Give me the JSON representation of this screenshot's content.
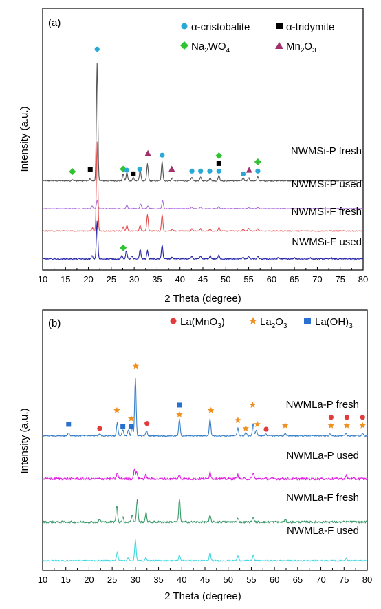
{
  "chart_data": [
    {
      "type": "line",
      "panel_label": "(a)",
      "xlabel": "2 Theta (degree)",
      "ylabel": "Intensity (a.u.)",
      "xlim": [
        10,
        80
      ],
      "xticks": [
        10,
        15,
        20,
        25,
        30,
        35,
        40,
        45,
        50,
        55,
        60,
        65,
        70,
        75,
        80
      ],
      "legend": [
        {
          "label": "α-cristobalite",
          "marker": "circle",
          "color": "#29a9d6"
        },
        {
          "label": "α-tridymite",
          "marker": "square",
          "color": "#000000"
        },
        {
          "label": "Na2WO4",
          "marker": "diamond",
          "color": "#2fc42f"
        },
        {
          "label": "Mn2O3",
          "marker": "triangle",
          "color": "#a0306e"
        }
      ],
      "series": [
        {
          "name": "NWMSi-P fresh",
          "color": "#555555",
          "offset": 3.0,
          "noise": 0.04,
          "peaks": [
            [
              16.5,
              0.05
            ],
            [
              20.4,
              0.08
            ],
            [
              21.9,
              4.2
            ],
            [
              27.6,
              0.25
            ],
            [
              28.4,
              0.3
            ],
            [
              29.8,
              0.12
            ],
            [
              31.3,
              0.4
            ],
            [
              32.9,
              0.6
            ],
            [
              36.1,
              0.7
            ],
            [
              38.3,
              0.1
            ],
            [
              42.6,
              0.12
            ],
            [
              44.5,
              0.12
            ],
            [
              46.6,
              0.12
            ],
            [
              48.5,
              0.2
            ],
            [
              53.8,
              0.1
            ],
            [
              55.0,
              0.12
            ],
            [
              57.0,
              0.14
            ]
          ],
          "markers": [
            {
              "type": "circle",
              "x": 21.9,
              "y": 4.72,
              "label": ""
            },
            {
              "type": "diamond",
              "x": 16.5,
              "y": 0.33
            },
            {
              "type": "square",
              "x": 20.4,
              "y": 0.42
            },
            {
              "type": "diamond",
              "x": 27.6,
              "y": 0.42
            },
            {
              "type": "circle",
              "x": 28.4,
              "y": 0.38
            },
            {
              "type": "square",
              "x": 29.8,
              "y": 0.25
            },
            {
              "type": "circle",
              "x": 31.2,
              "y": 0.42
            },
            {
              "type": "triangle",
              "x": 33.0,
              "y": 0.98
            },
            {
              "type": "circle",
              "x": 36.1,
              "y": 0.92
            },
            {
              "type": "triangle",
              "x": 38.2,
              "y": 0.42
            },
            {
              "type": "circle",
              "x": 42.6,
              "y": 0.35
            },
            {
              "type": "circle",
              "x": 44.5,
              "y": 0.35
            },
            {
              "type": "circle",
              "x": 46.5,
              "y": 0.35
            },
            {
              "type": "circle",
              "x": 48.5,
              "y": 0.35
            },
            {
              "type": "square",
              "x": 48.5,
              "y": 0.62
            },
            {
              "type": "diamond",
              "x": 48.5,
              "y": 0.9
            },
            {
              "type": "circle",
              "x": 53.8,
              "y": 0.25
            },
            {
              "type": "triangle",
              "x": 55.1,
              "y": 0.38
            },
            {
              "type": "circle",
              "x": 57.0,
              "y": 0.35
            },
            {
              "type": "diamond",
              "x": 57.0,
              "y": 0.68
            }
          ]
        },
        {
          "name": "NWMSi-P used",
          "color": "#b070e0",
          "offset": 2.0,
          "noise": 0.03,
          "peaks": [
            [
              20.8,
              0.1
            ],
            [
              21.9,
              0.3
            ],
            [
              28.4,
              0.15
            ],
            [
              31.4,
              0.18
            ],
            [
              33.0,
              0.1
            ],
            [
              36.2,
              0.3
            ],
            [
              42.6,
              0.06
            ],
            [
              44.5,
              0.06
            ],
            [
              48.5,
              0.08
            ],
            [
              55.0,
              0.06
            ],
            [
              57.0,
              0.05
            ]
          ],
          "markers": []
        },
        {
          "name": "NWMSi-F fresh",
          "color": "#e55050",
          "offset": 1.2,
          "noise": 0.03,
          "peaks": [
            [
              20.9,
              0.12
            ],
            [
              21.9,
              3.2
            ],
            [
              27.6,
              0.15
            ],
            [
              28.4,
              0.2
            ],
            [
              31.3,
              0.2
            ],
            [
              32.9,
              0.6
            ],
            [
              36.1,
              0.6
            ],
            [
              38.3,
              0.05
            ],
            [
              42.6,
              0.08
            ],
            [
              44.5,
              0.08
            ],
            [
              46.6,
              0.08
            ],
            [
              48.5,
              0.12
            ],
            [
              53.8,
              0.06
            ],
            [
              55.0,
              0.1
            ],
            [
              57.0,
              0.08
            ]
          ],
          "markers": []
        },
        {
          "name": "NWMSi-F used",
          "color": "#2424a8",
          "offset": 0.2,
          "noise": 0.035,
          "peaks": [
            [
              20.8,
              0.12
            ],
            [
              21.9,
              1.35
            ],
            [
              27.3,
              0.12
            ],
            [
              28.3,
              0.3
            ],
            [
              29.5,
              0.1
            ],
            [
              31.3,
              0.35
            ],
            [
              32.9,
              0.3
            ],
            [
              36.1,
              0.52
            ],
            [
              38.3,
              0.06
            ],
            [
              42.6,
              0.1
            ],
            [
              44.5,
              0.1
            ],
            [
              46.6,
              0.12
            ],
            [
              48.5,
              0.14
            ],
            [
              53.8,
              0.07
            ],
            [
              55.0,
              0.09
            ],
            [
              57.0,
              0.09
            ],
            [
              61.5,
              0.05
            ],
            [
              65.0,
              0.04
            ],
            [
              68.5,
              0.04
            ],
            [
              73.0,
              0.05
            ]
          ],
          "markers": [
            {
              "type": "diamond",
              "x": 27.6,
              "y": 0.4
            }
          ]
        }
      ]
    },
    {
      "type": "line",
      "panel_label": "(b)",
      "xlabel": "2 Theta (degree)",
      "ylabel": "Intensity (a.u.)",
      "xlim": [
        10,
        80
      ],
      "xticks": [
        10,
        15,
        20,
        25,
        30,
        35,
        40,
        45,
        50,
        55,
        60,
        65,
        70,
        75,
        80
      ],
      "legend": [
        {
          "label": "La(MnO3)",
          "marker": "circle",
          "color": "#e03c3c"
        },
        {
          "label": "La2O3",
          "marker": "star",
          "color": "#f09020"
        },
        {
          "label": "La(OH)3",
          "marker": "square",
          "color": "#2a70d0"
        }
      ],
      "series": [
        {
          "name": "NWMLa-P fresh",
          "color": "#3a80c8",
          "offset": 3.15,
          "noise": 0.03,
          "peaks": [
            [
              15.6,
              0.08
            ],
            [
              22.3,
              0.05
            ],
            [
              26.1,
              0.32
            ],
            [
              27.3,
              0.15
            ],
            [
              28.5,
              0.15
            ],
            [
              29.3,
              0.25
            ],
            [
              30.0,
              1.4
            ],
            [
              32.4,
              0.12
            ],
            [
              39.5,
              0.4
            ],
            [
              46.1,
              0.42
            ],
            [
              52.1,
              0.2
            ],
            [
              53.8,
              0.08
            ],
            [
              55.4,
              0.3
            ],
            [
              56.1,
              0.15
            ],
            [
              58.1,
              0.06
            ],
            [
              62.3,
              0.06
            ],
            [
              72.0,
              0.05
            ],
            [
              75.4,
              0.05
            ],
            [
              79.0,
              0.05
            ]
          ],
          "markers": [
            {
              "type": "square",
              "x": 15.6,
              "y": 0.28
            },
            {
              "type": "circle",
              "x": 22.3,
              "y": 0.18
            },
            {
              "type": "star",
              "x": 26.0,
              "y": 0.62
            },
            {
              "type": "square",
              "x": 27.3,
              "y": 0.22
            },
            {
              "type": "star",
              "x": 29.1,
              "y": 0.42
            },
            {
              "type": "square",
              "x": 29.1,
              "y": 0.22
            },
            {
              "type": "star",
              "x": 30.1,
              "y": 1.7
            },
            {
              "type": "circle",
              "x": 32.5,
              "y": 0.3
            },
            {
              "type": "square",
              "x": 39.5,
              "y": 0.75
            },
            {
              "type": "star",
              "x": 39.5,
              "y": 0.52
            },
            {
              "type": "star",
              "x": 46.3,
              "y": 0.62
            },
            {
              "type": "star",
              "x": 52.1,
              "y": 0.38
            },
            {
              "type": "star",
              "x": 53.8,
              "y": 0.18
            },
            {
              "type": "star",
              "x": 55.3,
              "y": 0.75
            },
            {
              "type": "star",
              "x": 56.3,
              "y": 0.28
            },
            {
              "type": "circle",
              "x": 58.2,
              "y": 0.16
            },
            {
              "type": "star",
              "x": 62.3,
              "y": 0.25
            },
            {
              "type": "circle",
              "x": 72.2,
              "y": 0.45
            },
            {
              "type": "star",
              "x": 72.2,
              "y": 0.25
            },
            {
              "type": "circle",
              "x": 75.6,
              "y": 0.45
            },
            {
              "type": "star",
              "x": 75.6,
              "y": 0.25
            },
            {
              "type": "circle",
              "x": 79.0,
              "y": 0.45
            },
            {
              "type": "star",
              "x": 79.0,
              "y": 0.25
            }
          ]
        },
        {
          "name": "NWMLa-P used",
          "color": "#e020e0",
          "offset": 2.1,
          "noise": 0.06,
          "peaks": [
            [
              26.1,
              0.15
            ],
            [
              29.8,
              0.25
            ],
            [
              30.3,
              0.18
            ],
            [
              32.3,
              0.1
            ],
            [
              39.5,
              0.1
            ],
            [
              46.1,
              0.18
            ],
            [
              52.1,
              0.1
            ],
            [
              55.4,
              0.15
            ],
            [
              75.5,
              0.08
            ]
          ],
          "markers": []
        },
        {
          "name": "NWMLa-F fresh",
          "color": "#3a9a6a",
          "offset": 1.05,
          "noise": 0.05,
          "peaks": [
            [
              22.3,
              0.06
            ],
            [
              26.0,
              0.4
            ],
            [
              27.3,
              0.12
            ],
            [
              29.3,
              0.18
            ],
            [
              30.4,
              0.55
            ],
            [
              32.3,
              0.22
            ],
            [
              39.5,
              0.55
            ],
            [
              46.1,
              0.15
            ],
            [
              52.1,
              0.1
            ],
            [
              55.4,
              0.12
            ],
            [
              62.3,
              0.06
            ]
          ],
          "markers": []
        },
        {
          "name": "NWMLa-F used",
          "color": "#40d8e0",
          "offset": 0.1,
          "noise": 0.03,
          "peaks": [
            [
              26.1,
              0.22
            ],
            [
              28.4,
              0.08
            ],
            [
              30.0,
              0.5
            ],
            [
              32.3,
              0.08
            ],
            [
              39.5,
              0.14
            ],
            [
              46.1,
              0.2
            ],
            [
              52.1,
              0.12
            ],
            [
              55.4,
              0.14
            ],
            [
              75.5,
              0.08
            ]
          ],
          "markers": []
        }
      ]
    }
  ],
  "panels": [
    {
      "label": "(a)",
      "xlabel": "2 Theta (degree)",
      "ylabel": "Intensity (a.u.)",
      "legend": {
        "l1": "α-cristobalite",
        "l2": "α-tridymite",
        "l3_base": "Na",
        "l3_s1": "2",
        "l3_mid": "WO",
        "l3_s2": "4",
        "l4_base": "Mn",
        "l4_s1": "2",
        "l4_mid": "O",
        "l4_s2": "3"
      },
      "series_labels": [
        "NWMSi-P fresh",
        "NWMSi-P used",
        "NWMSi-F fresh",
        "NWMSi-F used"
      ],
      "ticks": [
        "10",
        "15",
        "20",
        "25",
        "30",
        "35",
        "40",
        "45",
        "50",
        "55",
        "60",
        "65",
        "70",
        "75",
        "80"
      ]
    },
    {
      "label": "(b)",
      "xlabel": "2 Theta (degree)",
      "ylabel": "Intensity (a.u.)",
      "legend": {
        "l1": "La(MnO",
        "l1_s": "3",
        "l1_end": ")",
        "l2_base": "La",
        "l2_s1": "2",
        "l2_mid": "O",
        "l2_s2": "3",
        "l3": "La(OH)",
        "l3_s": "3"
      },
      "series_labels": [
        "NWMLa-P fresh",
        "NWMLa-P used",
        "NWMLa-F fresh",
        "NWMLa-F used"
      ],
      "ticks": [
        "10",
        "15",
        "20",
        "25",
        "30",
        "35",
        "40",
        "45",
        "50",
        "55",
        "60",
        "65",
        "70",
        "75",
        "80"
      ]
    }
  ]
}
